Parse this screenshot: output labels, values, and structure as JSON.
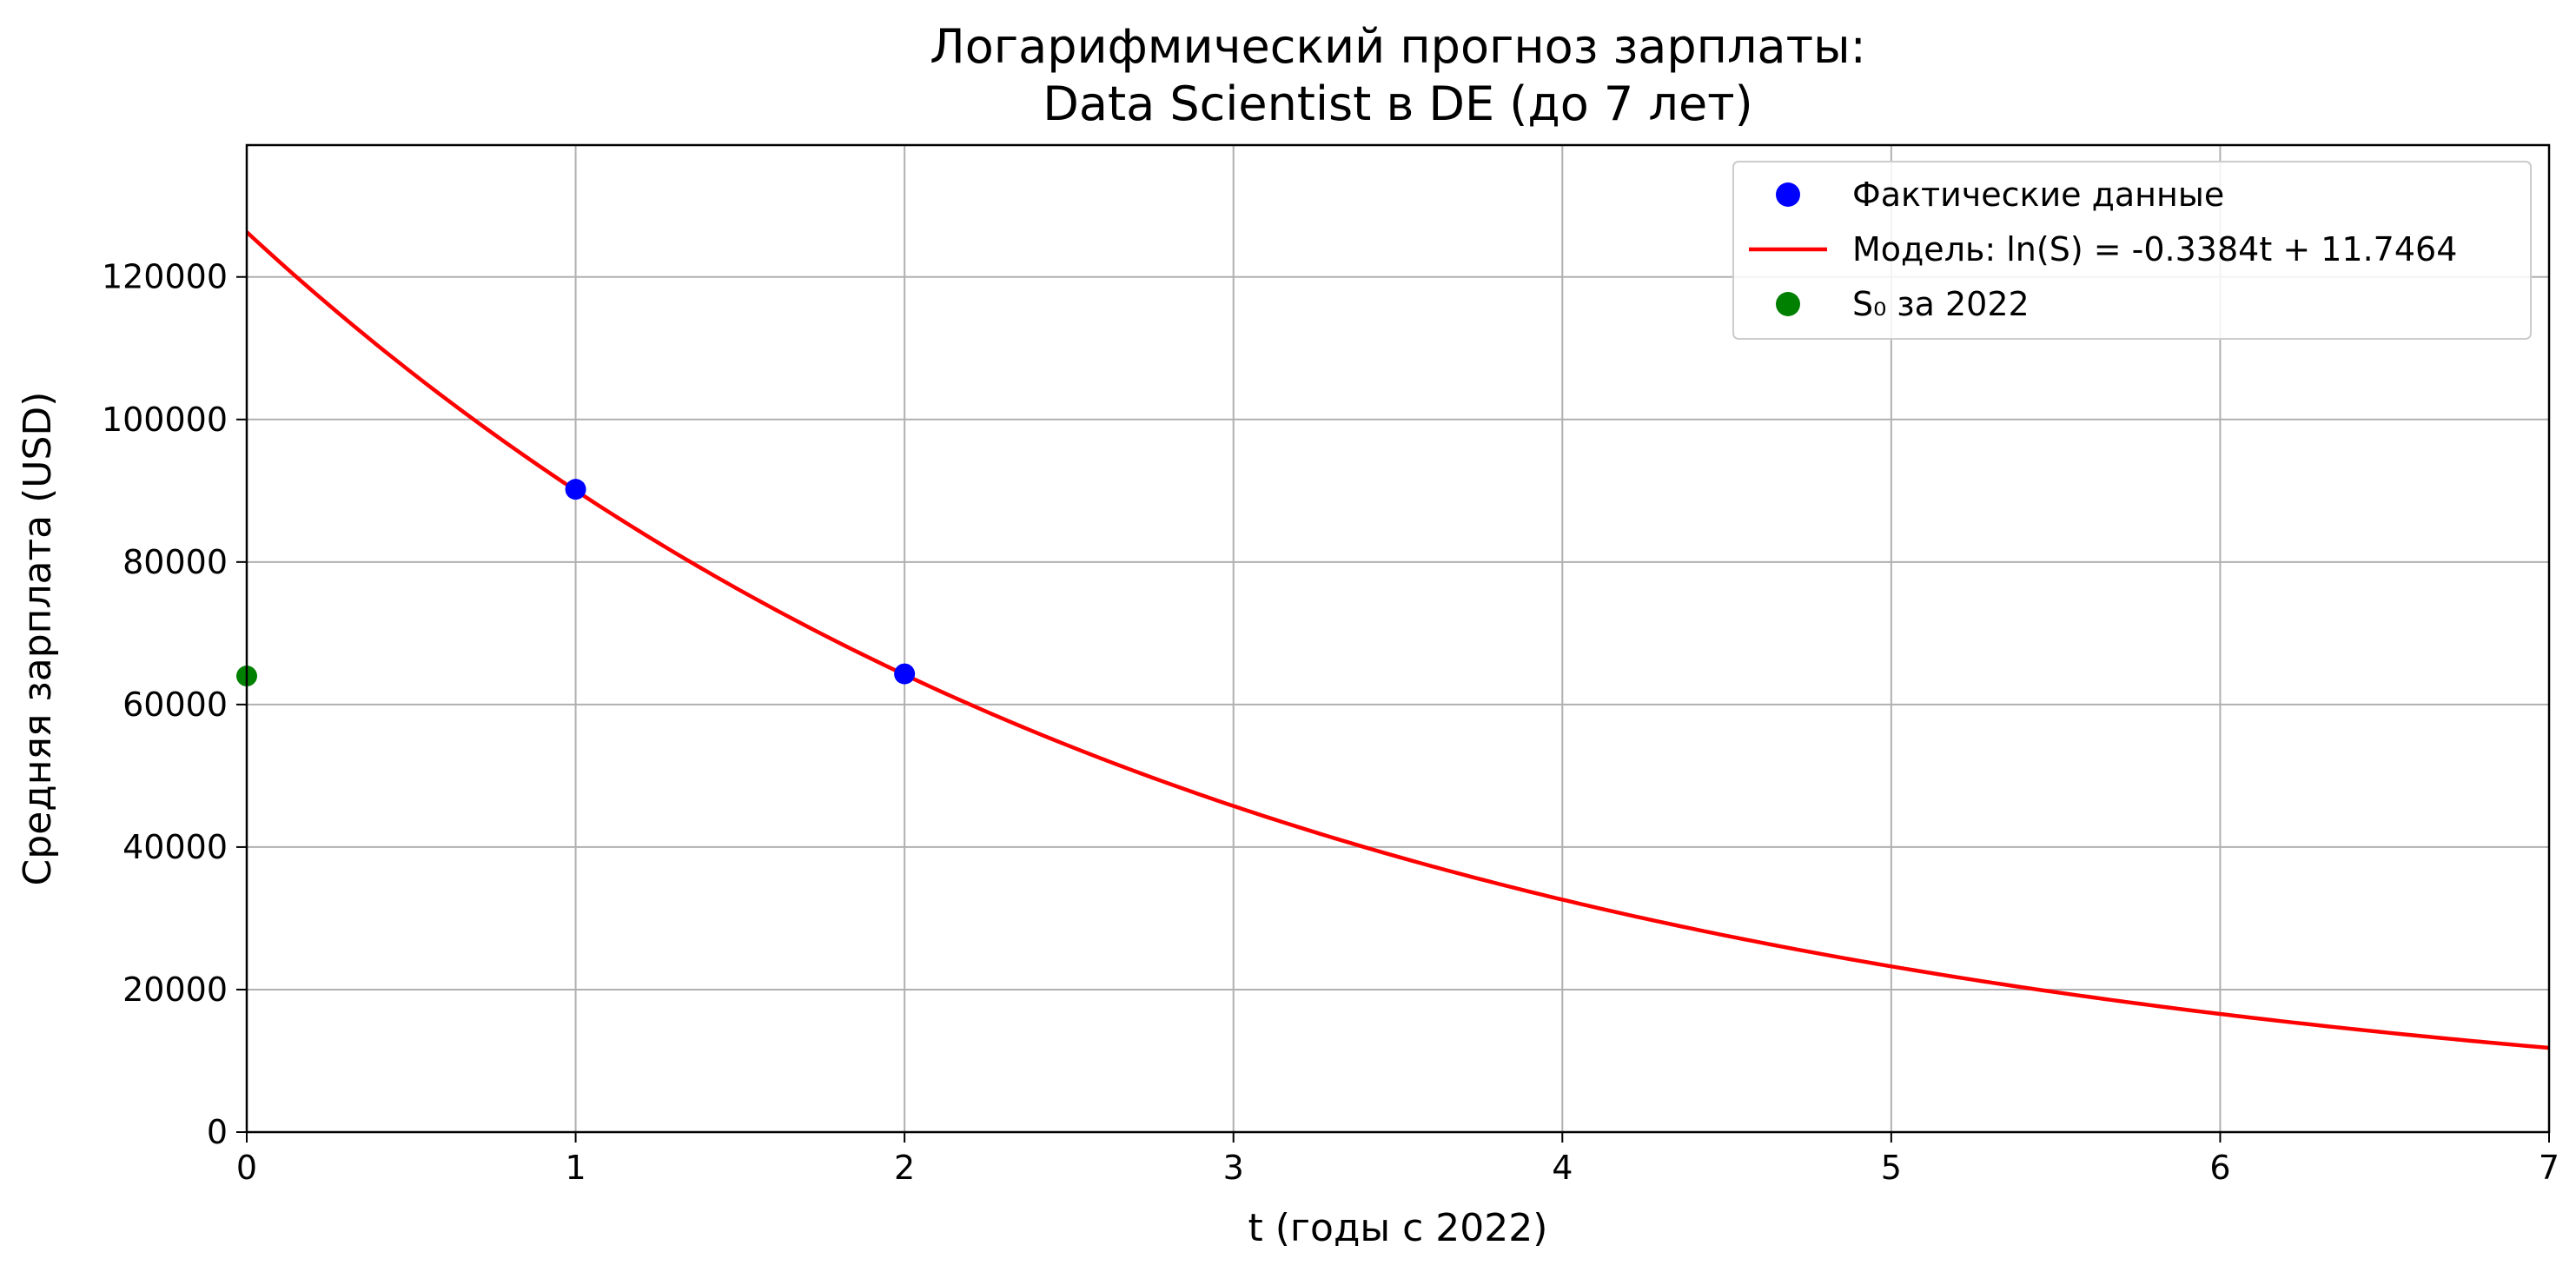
{
  "chart_data": {
    "type": "scatter",
    "title": [
      "Логарифмический прогноз зарплаты:",
      "Data Scientist в DE (до 7 лет)"
    ],
    "xlabel": "t (годы с 2022)",
    "ylabel": "Средняя зарплата (USD)",
    "xlim": [
      0,
      7
    ],
    "ylim": [
      0,
      138500
    ],
    "xticks": [
      0,
      1,
      2,
      3,
      4,
      5,
      6,
      7
    ],
    "xtick_labels": [
      "0",
      "1",
      "2",
      "3",
      "4",
      "5",
      "6",
      "7"
    ],
    "yticks": [
      0,
      20000,
      40000,
      60000,
      80000,
      100000,
      120000
    ],
    "ytick_labels": [
      "0",
      "20000",
      "40000",
      "60000",
      "80000",
      "100000",
      "120000"
    ],
    "grid": true,
    "legend_position": "top-right",
    "series": [
      {
        "name": "Фактические данные",
        "kind": "scatter",
        "color": "#0000ff",
        "x": [
          1,
          2
        ],
        "y": [
          90200,
          64300
        ]
      },
      {
        "name": "Модель: ln(S) = -0.3384t + 11.7464",
        "kind": "line",
        "color": "#ff0000",
        "model": {
          "slope": -0.3384,
          "intercept": 11.7464
        },
        "x_range": [
          0,
          7
        ]
      },
      {
        "name": "S₀ за 2022",
        "kind": "scatter",
        "color": "#008000",
        "x": [
          0
        ],
        "y": [
          64000
        ]
      }
    ]
  }
}
